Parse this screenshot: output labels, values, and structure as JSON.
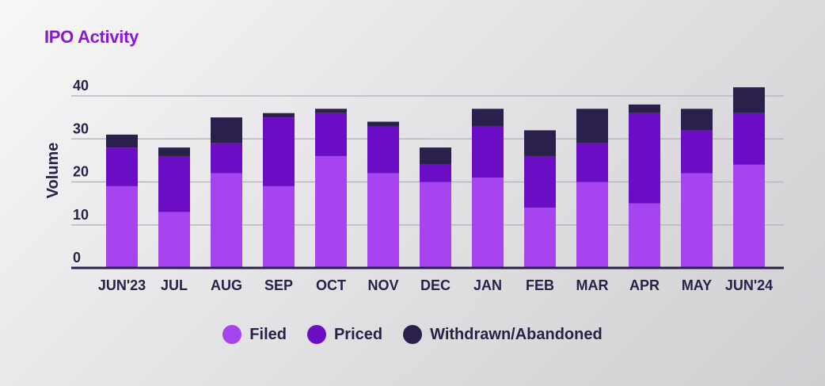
{
  "chart_data": {
    "type": "bar",
    "stacked": true,
    "title": "IPO Activity",
    "xlabel": "",
    "ylabel": "Volume",
    "ylim": [
      0,
      40
    ],
    "yticks": [
      0,
      10,
      20,
      30,
      40
    ],
    "grid": true,
    "legend_position": "bottom-center",
    "categories": [
      "JUN'23",
      "JUL",
      "AUG",
      "SEP",
      "OCT",
      "NOV",
      "DEC",
      "JAN",
      "FEB",
      "MAR",
      "APR",
      "MAY",
      "JUN'24"
    ],
    "series": [
      {
        "name": "Filed",
        "color": "#a644f0",
        "values": [
          19,
          13,
          22,
          19,
          26,
          22,
          20,
          21,
          14,
          20,
          15,
          22,
          24
        ]
      },
      {
        "name": "Priced",
        "color": "#6b0dc4",
        "values": [
          9,
          13,
          7,
          16,
          10,
          11,
          4,
          12,
          12,
          9,
          21,
          10,
          12
        ]
      },
      {
        "name": "Withdrawn/Abandoned",
        "color": "#2b1f4c",
        "values": [
          3,
          2,
          6,
          1,
          1,
          1,
          4,
          4,
          6,
          8,
          2,
          5,
          6
        ]
      }
    ]
  }
}
